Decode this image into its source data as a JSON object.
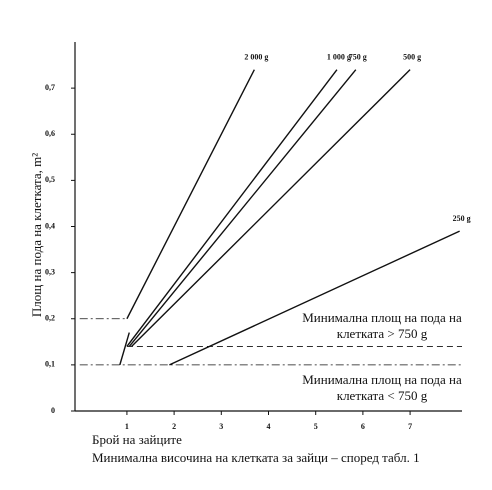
{
  "chart_data": {
    "type": "line",
    "y_label": "Площ на пода на клетката, m²",
    "x_label": "Брой на зайците",
    "caption": "Минимална височина на клетката за зайци – според табл. 1",
    "xlim": [
      -0.1,
      8.1
    ],
    "ylim": [
      0,
      0.8
    ],
    "xticks": [
      1,
      2,
      3,
      4,
      5,
      6,
      7
    ],
    "yticks": [
      0,
      {
        "value": 0.1,
        "label": "0,1"
      },
      {
        "value": 0.2,
        "label": "0,2"
      },
      {
        "value": 0.3,
        "label": "0,3"
      },
      {
        "value": 0.4,
        "label": "0,4"
      },
      {
        "value": 0.5,
        "label": "0,5"
      },
      {
        "value": 0.6,
        "label": "0,6"
      },
      {
        "value": 0.7,
        "label": "0,7"
      }
    ],
    "color": "#111",
    "series": [
      {
        "name": "2 000 g",
        "x": [
          1,
          3.7
        ],
        "values": [
          0.2,
          0.74
        ]
      },
      {
        "name": "1 000 g",
        "x": [
          1,
          5.45
        ],
        "values": [
          0.14,
          0.74
        ]
      },
      {
        "name": "750 g",
        "x": [
          1.05,
          5.85
        ],
        "values": [
          0.14,
          0.74
        ]
      },
      {
        "name": "500 g",
        "x": [
          1.1,
          7.0
        ],
        "values": [
          0.14,
          0.74
        ]
      },
      {
        "name": "250 g",
        "x": [
          1.9,
          8.05
        ],
        "values": [
          0.1,
          0.39
        ]
      },
      {
        "x": [
          0.85,
          1.05
        ],
        "values": [
          0.1,
          0.17
        ]
      },
      {
        "x": [
          0,
          1
        ],
        "values": [
          0.2,
          0.2
        ],
        "dash": "dashdot"
      },
      {
        "x": [
          1,
          8.1
        ],
        "values": [
          0.14,
          0.14
        ],
        "dash": "dashed"
      },
      {
        "x": [
          0,
          8.1
        ],
        "values": [
          0.1,
          0.1
        ],
        "dash": "dashdot"
      }
    ],
    "annotations": [
      {
        "lines": [
          "Минимална площ на пода на",
          "клетката  > 750 g"
        ]
      },
      {
        "lines": [
          "Минимална площ на пода на",
          "клетката < 750 g"
        ]
      }
    ]
  }
}
